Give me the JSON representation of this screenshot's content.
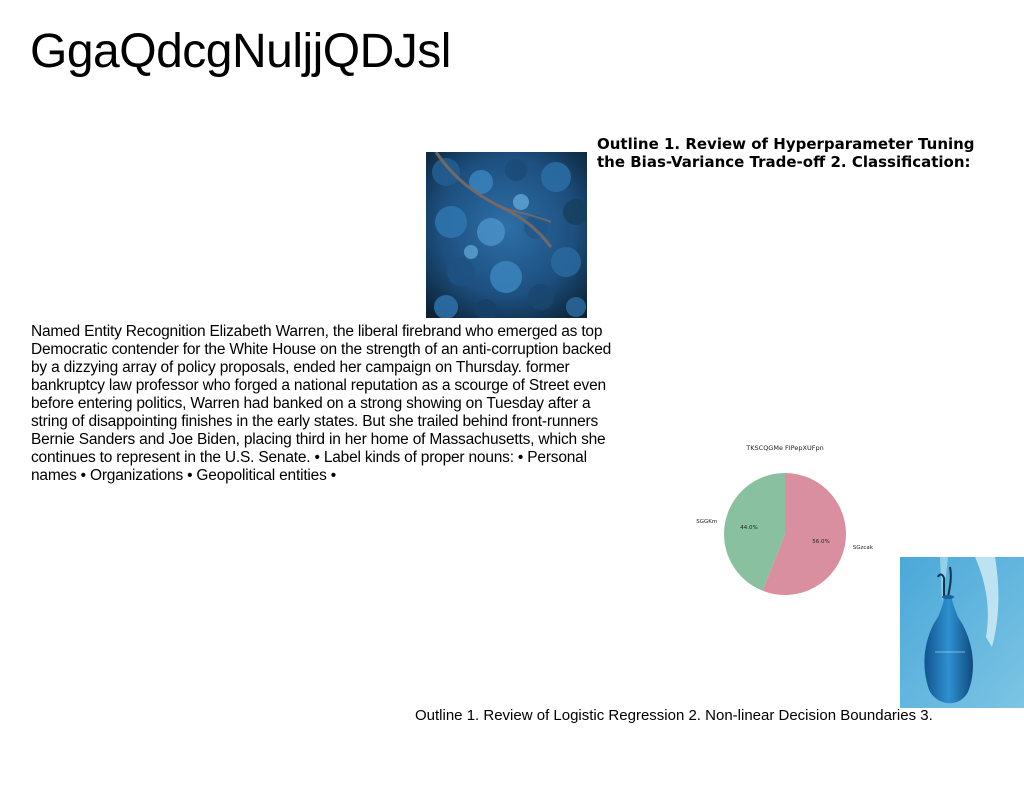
{
  "page": {
    "title": "GgaQdcgNuljjQDJsl"
  },
  "outline_top": {
    "text": "Outline 1. Review of Hyperparameter Tuning the Bias-Variance Trade-off 2. Classification:"
  },
  "ner_block": {
    "text": "Named Entity Recognition Elizabeth Warren, the liberal firebrand who emerged as top Democratic contender for the White House on the strength of an anti-corruption backed by a dizzying array of policy proposals, ended her campaign on Thursday. former bankruptcy law professor who forged a national reputation as a scourge of Street even before entering politics, Warren had banked on a strong showing on Tuesday after a string of disappointing finishes in the early states. But she trailed behind front-runners Bernie Sanders and Joe Biden, placing third in her home of Massachusetts, which she continues to represent in the U.S. Senate. • Label kinds of proper nouns: • Personal names • Organizations • Geopolitical entities •"
  },
  "images": {
    "forest": "aerial-forest-photo",
    "vase": "blue-glass-vase-photo"
  },
  "outline_bottom": {
    "text": "Outline 1. Review of Logistic Regression 2. Non-linear Decision Boundaries 3."
  },
  "chart_data": {
    "type": "pie",
    "title": "TKSCQGMe FIPepXUFpn",
    "slices": [
      {
        "label": "SGzcak",
        "value": 56.0,
        "pct_label": "56.0%",
        "color": "#d98fa0"
      },
      {
        "label": "SGGKm",
        "value": 44.0,
        "pct_label": "44.0%",
        "color": "#88c0a0"
      }
    ]
  }
}
